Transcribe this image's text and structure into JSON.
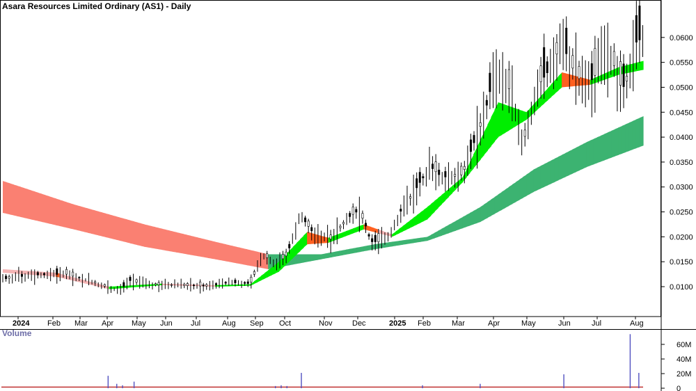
{
  "chart_data": [
    {
      "type": "candlestick",
      "title": "Asara Resources Limited Ordinary (AS1) - Daily",
      "x_tick_labels": [
        "2024",
        "Feb",
        "Mar",
        "Apr",
        "May",
        "Jun",
        "Jul",
        "Aug",
        "Sep",
        "Oct",
        "Nov",
        "Dec",
        "2025",
        "Feb",
        "Mar",
        "Apr",
        "May",
        "Jun",
        "Jul",
        "Aug"
      ],
      "y_tick_labels": [
        "0.0600",
        "0.0550",
        "0.0500",
        "0.0450",
        "0.0400",
        "0.0350",
        "0.0300",
        "0.0250",
        "0.0200",
        "0.0150",
        "0.0100"
      ],
      "y_ticks": [
        0.06,
        0.055,
        0.05,
        0.045,
        0.04,
        0.035,
        0.03,
        0.025,
        0.02,
        0.015,
        0.01
      ],
      "price_path": [
        {
          "t": 0,
          "p": 0.0115
        },
        {
          "t": 8,
          "p": 0.0123
        },
        {
          "t": 18,
          "p": 0.0125
        },
        {
          "t": 25,
          "p": 0.011
        },
        {
          "t": 30,
          "p": 0.0098
        },
        {
          "t": 33,
          "p": 0.0092
        },
        {
          "t": 36,
          "p": 0.0112
        },
        {
          "t": 40,
          "p": 0.0105
        },
        {
          "t": 46,
          "p": 0.0103
        },
        {
          "t": 52,
          "p": 0.0102
        },
        {
          "t": 58,
          "p": 0.0101
        },
        {
          "t": 64,
          "p": 0.0108
        },
        {
          "t": 70,
          "p": 0.0106
        },
        {
          "t": 72,
          "p": 0.014
        },
        {
          "t": 74,
          "p": 0.0162
        },
        {
          "t": 77,
          "p": 0.0145
        },
        {
          "t": 80,
          "p": 0.016
        },
        {
          "t": 82,
          "p": 0.0195
        },
        {
          "t": 84,
          "p": 0.0245
        },
        {
          "t": 86,
          "p": 0.0225
        },
        {
          "t": 88,
          "p": 0.0205
        },
        {
          "t": 90,
          "p": 0.02
        },
        {
          "t": 93,
          "p": 0.0195
        },
        {
          "t": 95,
          "p": 0.0215
        },
        {
          "t": 98,
          "p": 0.024
        },
        {
          "t": 100,
          "p": 0.025
        },
        {
          "t": 102,
          "p": 0.0235
        },
        {
          "t": 104,
          "p": 0.019
        },
        {
          "t": 107,
          "p": 0.019
        },
        {
          "t": 109,
          "p": 0.02
        },
        {
          "t": 111,
          "p": 0.0225
        },
        {
          "t": 113,
          "p": 0.026
        },
        {
          "t": 115,
          "p": 0.0275
        },
        {
          "t": 118,
          "p": 0.031
        },
        {
          "t": 121,
          "p": 0.034
        },
        {
          "t": 124,
          "p": 0.032
        },
        {
          "t": 127,
          "p": 0.032
        },
        {
          "t": 130,
          "p": 0.0325
        },
        {
          "t": 133,
          "p": 0.0385
        },
        {
          "t": 136,
          "p": 0.044
        },
        {
          "t": 139,
          "p": 0.053
        },
        {
          "t": 141,
          "p": 0.052
        },
        {
          "t": 143,
          "p": 0.05
        },
        {
          "t": 145,
          "p": 0.044
        },
        {
          "t": 147,
          "p": 0.0385
        },
        {
          "t": 149,
          "p": 0.044
        },
        {
          "t": 152,
          "p": 0.051
        },
        {
          "t": 155,
          "p": 0.054
        },
        {
          "t": 158,
          "p": 0.059
        },
        {
          "t": 160,
          "p": 0.0555
        },
        {
          "t": 162,
          "p": 0.0525
        },
        {
          "t": 165,
          "p": 0.05
        },
        {
          "t": 168,
          "p": 0.053
        },
        {
          "t": 171,
          "p": 0.0575
        },
        {
          "t": 173,
          "p": 0.054
        },
        {
          "t": 175,
          "p": 0.0495
        },
        {
          "t": 177,
          "p": 0.052
        },
        {
          "t": 179,
          "p": 0.059
        },
        {
          "t": 181,
          "p": 0.06
        }
      ],
      "long_term_band": [
        {
          "t": 0,
          "hi": 0.0312,
          "lo": 0.0248
        },
        {
          "t": 20,
          "hi": 0.0265,
          "lo": 0.0215
        },
        {
          "t": 40,
          "hi": 0.0225,
          "lo": 0.018
        },
        {
          "t": 60,
          "hi": 0.019,
          "lo": 0.0155
        },
        {
          "t": 75,
          "hi": 0.0165,
          "lo": 0.0135
        },
        {
          "t": 90,
          "hi": 0.0165,
          "lo": 0.0155
        },
        {
          "t": 105,
          "hi": 0.0185,
          "lo": 0.0175
        },
        {
          "t": 120,
          "hi": 0.02,
          "lo": 0.0192
        },
        {
          "t": 135,
          "hi": 0.026,
          "lo": 0.023
        },
        {
          "t": 150,
          "hi": 0.0335,
          "lo": 0.029
        },
        {
          "t": 165,
          "hi": 0.039,
          "lo": 0.034
        },
        {
          "t": 181,
          "hi": 0.0442,
          "lo": 0.0383
        }
      ],
      "short_term_band": [
        {
          "t": 0,
          "hi": 0.0135,
          "lo": 0.0128
        },
        {
          "t": 15,
          "hi": 0.0128,
          "lo": 0.012
        },
        {
          "t": 30,
          "hi": 0.01,
          "lo": 0.0095
        },
        {
          "t": 45,
          "hi": 0.0106,
          "lo": 0.0103
        },
        {
          "t": 60,
          "hi": 0.0103,
          "lo": 0.01
        },
        {
          "t": 70,
          "hi": 0.0105,
          "lo": 0.0102
        },
        {
          "t": 78,
          "hi": 0.015,
          "lo": 0.013
        },
        {
          "t": 86,
          "hi": 0.021,
          "lo": 0.0185
        },
        {
          "t": 92,
          "hi": 0.0198,
          "lo": 0.0188
        },
        {
          "t": 102,
          "hi": 0.0225,
          "lo": 0.0215
        },
        {
          "t": 110,
          "hi": 0.0205,
          "lo": 0.02
        },
        {
          "t": 120,
          "hi": 0.026,
          "lo": 0.0235
        },
        {
          "t": 130,
          "hi": 0.032,
          "lo": 0.031
        },
        {
          "t": 140,
          "hi": 0.047,
          "lo": 0.04
        },
        {
          "t": 148,
          "hi": 0.045,
          "lo": 0.0435
        },
        {
          "t": 158,
          "hi": 0.053,
          "lo": 0.05
        },
        {
          "t": 166,
          "hi": 0.0515,
          "lo": 0.0505
        },
        {
          "t": 174,
          "hi": 0.054,
          "lo": 0.0525
        },
        {
          "t": 181,
          "hi": 0.0553,
          "lo": 0.0535
        }
      ],
      "colors": {
        "long_up": "#3cb371",
        "long_down": "#fa8072",
        "short_up": "#00ee00",
        "short_down": "#ff6020",
        "short_flat_down": "#f4b4b4",
        "candle": "#000000"
      }
    },
    {
      "type": "bar",
      "title": "Volume",
      "y_tick_labels": [
        "60M",
        "40M",
        "20M",
        "0"
      ],
      "y_ticks": [
        60,
        40,
        20,
        0
      ],
      "unit": "M",
      "baseline": 1.5,
      "spikes": [
        {
          "t": 37,
          "v": 17
        },
        {
          "t": 40,
          "v": 6
        },
        {
          "t": 42,
          "v": 4
        },
        {
          "t": 46,
          "v": 9
        },
        {
          "t": 95,
          "v": 3
        },
        {
          "t": 97,
          "v": 4
        },
        {
          "t": 99,
          "v": 3
        },
        {
          "t": 104,
          "v": 21
        },
        {
          "t": 146,
          "v": 4
        },
        {
          "t": 166,
          "v": 6
        },
        {
          "t": 195,
          "v": 19
        },
        {
          "t": 218,
          "v": 74
        },
        {
          "t": 221,
          "v": 21
        }
      ],
      "colors": {
        "bar": "#5050c0",
        "baseline": "#c03030"
      }
    }
  ]
}
